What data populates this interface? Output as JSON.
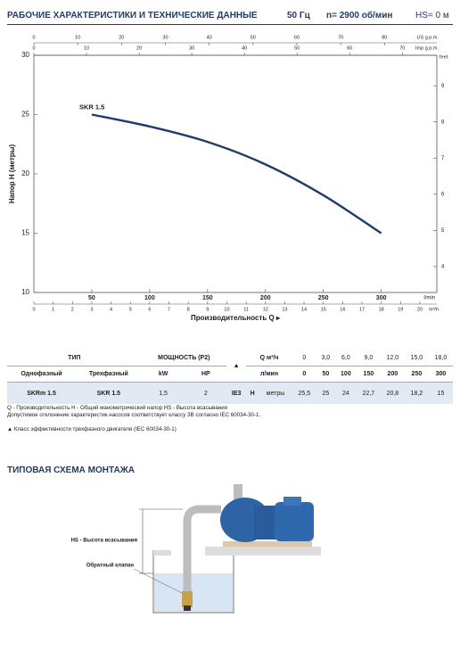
{
  "header": {
    "title": "РАБОЧИЕ ХАРАКТЕРИСТИКИ И ТЕХНИЧЕСКИЕ ДАННЫЕ",
    "frequency": "50 Гц",
    "speed": "n= 2900 об/мин",
    "suction": "HS= 0 м"
  },
  "chart_data": {
    "type": "line",
    "y_label": "Напор H (метры)",
    "x_label": "Производительность Q ▸",
    "x_unit": "l/min",
    "xlim": [
      0,
      348
    ],
    "xticks": [
      50,
      100,
      150,
      200,
      250,
      300
    ],
    "ylim": [
      10,
      30
    ],
    "yticks": [
      10,
      15,
      20,
      25,
      30
    ],
    "y2_unit": "feet",
    "y2lim": [
      3.281,
      9.843
    ],
    "y2ticks": [
      4,
      5,
      6,
      7,
      8,
      9
    ],
    "top_axis": {
      "unit": "US g.p.m.",
      "lim": [
        0,
        91.94
      ],
      "ticks": [
        0,
        10,
        20,
        30,
        40,
        50,
        60,
        70,
        80
      ]
    },
    "top_axis_2": {
      "unit": "Imp g.p.m.",
      "lim": [
        0,
        76.55
      ],
      "ticks": [
        0,
        10,
        20,
        30,
        40,
        50,
        60,
        70
      ]
    },
    "bottom_axis_2": {
      "unit": "m³/h",
      "lim": [
        0,
        20.88
      ],
      "ticks": [
        0,
        1,
        2,
        3,
        4,
        5,
        6,
        7,
        8,
        9,
        10,
        11,
        12,
        13,
        14,
        15,
        16,
        17,
        18,
        19,
        20
      ]
    },
    "grid": false,
    "series": [
      {
        "name": "SKR 1.5",
        "color": "#1f3c6b",
        "x": [
          50,
          100,
          150,
          200,
          250,
          300
        ],
        "values": [
          25,
          24,
          22.7,
          20.8,
          18.2,
          15
        ]
      }
    ]
  },
  "table": {
    "rows": [
      [
        "ТИП",
        "МОЩНОСТЬ (P2)",
        "▲",
        "Q м³/ч",
        "0",
        "3,0",
        "6,0",
        "9,0",
        "12,0",
        "15,0",
        "18,0"
      ],
      [
        "Однофазный",
        "Трехфазный",
        "kW",
        "HP",
        "л/мин",
        "0",
        "50",
        "100",
        "150",
        "200",
        "250",
        "300"
      ],
      [
        "SKRm 1.5",
        "SKR 1.5",
        "1,5",
        "2",
        "IE3",
        "H",
        "метры",
        "25,5",
        "25",
        "24",
        "22,7",
        "20,8",
        "18,2",
        "15"
      ]
    ]
  },
  "notes": [
    "Q - Производительность   H - Общий манометрический напор   HS - Высота всасывания",
    "Допустимое отклонение характеристик насосов соответствует классу 3B согласно IEC 60034-30-1.",
    "▲  Класс эффективности трехфазного двигателя (IEC 60034-30-1)"
  ],
  "installation": {
    "title": "ТИПОВАЯ СХЕМА МОНТАЖА",
    "suction_height": "HS - Высота всасывания",
    "check_valve": "Обратный клапан"
  }
}
